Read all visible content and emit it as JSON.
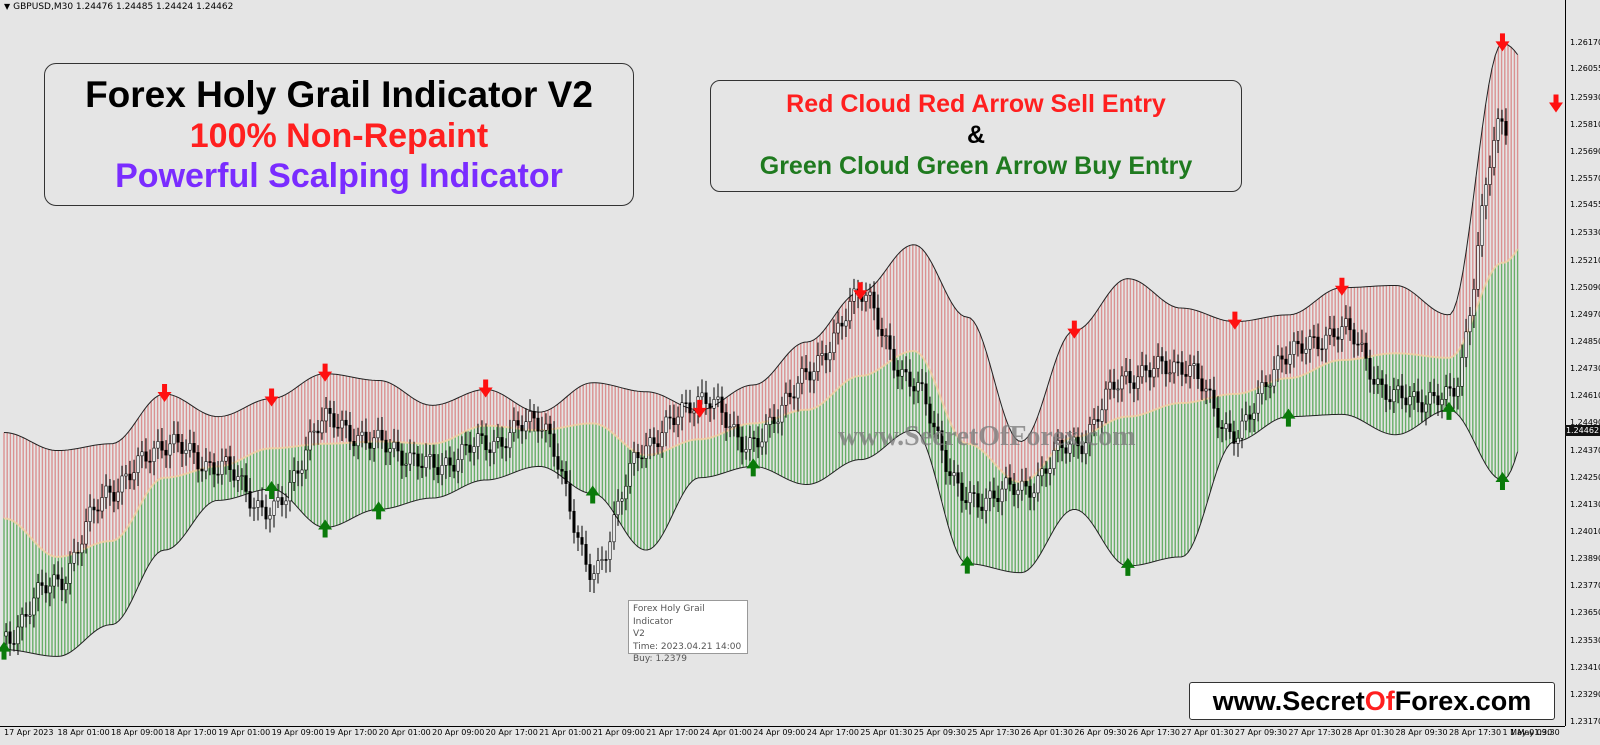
{
  "symbol_bar": {
    "text": "GBPUSD,M30  1.24476 1.24485 1.24424 1.24462"
  },
  "title_box": {
    "line1": "Forex Holy Grail Indicator V2",
    "line2": "100% Non-Repaint",
    "line3": "Powerful Scalping Indicator"
  },
  "entry_box": {
    "line1": "Red Cloud Red Arrow Sell Entry",
    "line2": "&",
    "line3": "Green Cloud Green Arrow Buy Entry"
  },
  "watermark": "www.SecretOfForex.com",
  "url_box": {
    "part1": "www.Secret",
    "part2": "Of",
    "part3": "Forex.com"
  },
  "tooltip": {
    "line1": "Forex Holy Grail Indicator",
    "line2": "V2",
    "line3": "Time: 2023.04.21 14:00",
    "line4": "Buy: 1.2379"
  },
  "colors": {
    "sell_cloud": "#e8a0a0",
    "buy_cloud": "#7ec47e",
    "sell_arrow": "#ff1010",
    "buy_arrow": "#0a7a0a",
    "background": "#e5e5e5"
  },
  "chart_data": {
    "type": "line",
    "symbol": "GBPUSD",
    "timeframe": "M30",
    "current_price": "1.24462",
    "ylim": [
      1.2317,
      1.263
    ],
    "y_ticks": [
      "1.26170",
      "1.26055",
      "1.25930",
      "1.25810",
      "1.25690",
      "1.25570",
      "1.25455",
      "1.25330",
      "1.25210",
      "1.25090",
      "1.24970",
      "1.24850",
      "1.24730",
      "1.24610",
      "1.24490",
      "1.24370",
      "1.24250",
      "1.24130",
      "1.24010",
      "1.23890",
      "1.23770",
      "1.23650",
      "1.23530",
      "1.23410",
      "1.23290",
      "1.23170"
    ],
    "x_ticks": [
      "17 Apr 2023",
      "18 Apr 01:00",
      "18 Apr 09:00",
      "18 Apr 17:00",
      "19 Apr 01:00",
      "19 Apr 09:00",
      "19 Apr 17:00",
      "20 Apr 01:00",
      "20 Apr 09:00",
      "20 Apr 17:00",
      "21 Apr 01:00",
      "21 Apr 09:00",
      "21 Apr 17:00",
      "24 Apr 01:00",
      "24 Apr 09:00",
      "24 Apr 17:00",
      "25 Apr 01:30",
      "25 Apr 09:30",
      "25 Apr 17:30",
      "26 Apr 01:30",
      "26 Apr 09:30",
      "26 Apr 17:30",
      "27 Apr 01:30",
      "27 Apr 09:30",
      "27 Apr 17:30",
      "28 Apr 01:30",
      "28 Apr 09:30",
      "28 Apr 17:30",
      "1 May 01:30",
      "1 May 09:30"
    ],
    "series": [
      {
        "x": [
          0,
          1,
          2,
          3,
          4,
          5,
          6,
          7,
          8,
          9,
          10,
          11,
          12,
          13,
          14,
          15,
          16,
          17,
          18,
          19,
          20,
          21,
          22,
          23,
          24,
          25,
          26,
          27,
          28,
          29
        ],
        "upper": [
          1.2445,
          1.2437,
          1.244,
          1.2462,
          1.2452,
          1.246,
          1.2471,
          1.2468,
          1.2457,
          1.2464,
          1.2454,
          1.2467,
          1.2463,
          1.2455,
          1.2466,
          1.2485,
          1.2507,
          1.2528,
          1.2496,
          1.2441,
          1.249,
          1.2513,
          1.25,
          1.2494,
          1.2497,
          1.2509,
          1.251,
          1.2497,
          1.2617,
          1.259
        ],
        "lower": [
          1.2349,
          1.2346,
          1.236,
          1.2393,
          1.2415,
          1.242,
          1.2403,
          1.2411,
          1.2416,
          1.2424,
          1.243,
          1.2418,
          1.2393,
          1.2425,
          1.243,
          1.2422,
          1.2433,
          1.2446,
          1.2387,
          1.2383,
          1.2411,
          1.2386,
          1.239,
          1.2441,
          1.2452,
          1.2453,
          1.2444,
          1.2455,
          1.2424,
          1.2492
        ],
        "mid": [
          1.2407,
          1.239,
          1.2397,
          1.2425,
          1.243,
          1.2438,
          1.244,
          1.2441,
          1.244,
          1.2448,
          1.2446,
          1.2449,
          1.2435,
          1.2442,
          1.2449,
          1.2455,
          1.247,
          1.2481,
          1.244,
          1.2423,
          1.2443,
          1.2452,
          1.2458,
          1.2462,
          1.2469,
          1.2477,
          1.248,
          1.2478,
          1.252,
          1.2553
        ],
        "close": [
          1.2355,
          1.238,
          1.242,
          1.244,
          1.243,
          1.241,
          1.245,
          1.244,
          1.243,
          1.244,
          1.245,
          1.2385,
          1.244,
          1.246,
          1.244,
          1.247,
          1.2505,
          1.2465,
          1.2415,
          1.242,
          1.244,
          1.247,
          1.2475,
          1.2445,
          1.248,
          1.249,
          1.246,
          1.246,
          1.258,
          1.2546
        ]
      }
    ],
    "sell_arrows_x": [
      3,
      5,
      6,
      9,
      13,
      16,
      20,
      23,
      25,
      28,
      29
    ],
    "buy_arrows_x": [
      0,
      5,
      6,
      7,
      11,
      14,
      18,
      21,
      24,
      27,
      28
    ],
    "grid": false,
    "legend": "none"
  }
}
